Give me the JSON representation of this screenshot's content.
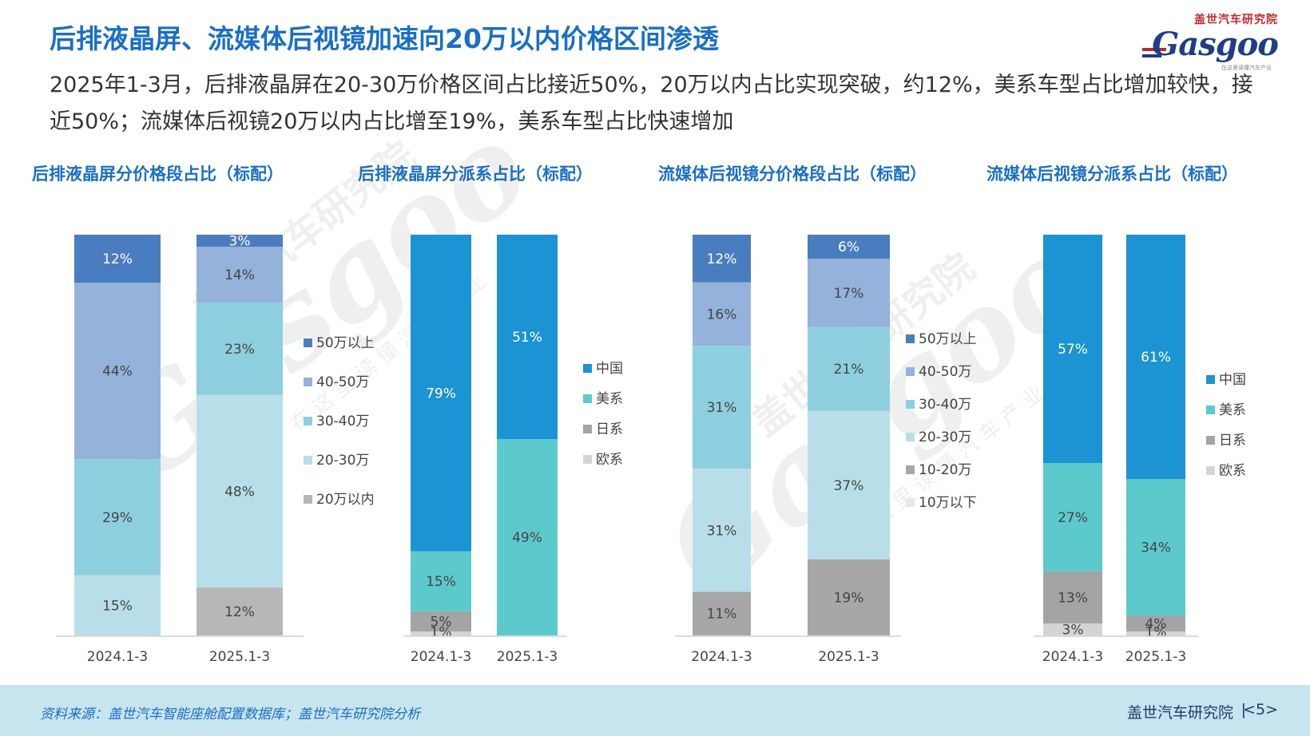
{
  "header": {
    "title": "后排液晶屏、流媒体后视镜加速向20万以内价格区间渗透",
    "subtitle": "2025年1-3月，后排液晶屏在20-30万价格区间占比接近50%，20万以内占比实现突破，约12%，美系车型占比增加较快，接近50%；流媒体后视镜20万以内占比增至19%，美系车型占比快速增加"
  },
  "logo": {
    "cn": "盖世汽车研究院",
    "brand": "Gasgoo",
    "tag": "在这里读懂汽车产业"
  },
  "watermark": {
    "cn": "盖世汽车研究院",
    "brand": "Gasgoo",
    "tag": "在 这 里 读 懂 汽 车 产 业"
  },
  "chart_data": [
    {
      "type": "bar",
      "stacked": true,
      "title": "后排液晶屏分价格段占比（标配）",
      "categories": [
        "2024.1-3",
        "2025.1-3"
      ],
      "series": [
        {
          "name": "20万以内",
          "values": [
            0,
            12
          ],
          "labels": [
            "",
            "12%"
          ],
          "color": "#b7b7b7"
        },
        {
          "name": "20-30万",
          "values": [
            15,
            48
          ],
          "labels": [
            "15%",
            "48%"
          ],
          "color": "#b8dfe9"
        },
        {
          "name": "30-40万",
          "values": [
            29,
            23
          ],
          "labels": [
            "29%",
            "23%"
          ],
          "color": "#8ecfdf"
        },
        {
          "name": "40-50万",
          "values": [
            44,
            14
          ],
          "labels": [
            "44%",
            "14%"
          ],
          "color": "#94b2da"
        },
        {
          "name": "50万以上",
          "values": [
            12,
            3
          ],
          "labels": [
            "12%",
            "3%"
          ],
          "color": "#4a7dbf"
        }
      ]
    },
    {
      "type": "bar",
      "stacked": true,
      "title": "后排液晶屏分派系占比（标配）",
      "categories": [
        "2024.1-3",
        "2025.1-3"
      ],
      "series": [
        {
          "name": "欧系",
          "values": [
            1,
            0
          ],
          "labels": [
            "1%",
            ""
          ],
          "color": "#d4d4d4"
        },
        {
          "name": "日系",
          "values": [
            5,
            0
          ],
          "labels": [
            "5%",
            ""
          ],
          "color": "#a4a4a4"
        },
        {
          "name": "美系",
          "values": [
            15,
            49
          ],
          "labels": [
            "15%",
            "49%"
          ],
          "color": "#5ccacc"
        },
        {
          "name": "中国",
          "values": [
            79,
            51
          ],
          "labels": [
            "79%",
            "51%"
          ],
          "color": "#1c93d2"
        }
      ]
    },
    {
      "type": "bar",
      "stacked": true,
      "title": "流媒体后视镜分价格段占比（标配）",
      "categories": [
        "2024.1-3",
        "2025.1-3"
      ],
      "series": [
        {
          "name": "10万以下",
          "values": [
            0,
            0
          ],
          "labels": [
            "",
            ""
          ],
          "color": "#e8e8e8"
        },
        {
          "name": "10-20万",
          "values": [
            11,
            19
          ],
          "labels": [
            "11%",
            "19%"
          ],
          "color": "#a7a7a7"
        },
        {
          "name": "20-30万",
          "values": [
            31,
            37
          ],
          "labels": [
            "31%",
            "37%"
          ],
          "color": "#b8dfe9"
        },
        {
          "name": "30-40万",
          "values": [
            31,
            21
          ],
          "labels": [
            "31%",
            "21%"
          ],
          "color": "#8ecfdf"
        },
        {
          "name": "40-50万",
          "values": [
            16,
            17
          ],
          "labels": [
            "16%",
            "17%"
          ],
          "color": "#94b2da"
        },
        {
          "name": "50万以上",
          "values": [
            12,
            6
          ],
          "labels": [
            "12%",
            "6%"
          ],
          "color": "#4a7dbf"
        }
      ]
    },
    {
      "type": "bar",
      "stacked": true,
      "title": "流媒体后视镜分派系占比（标配）",
      "categories": [
        "2024.1-3",
        "2025.1-3"
      ],
      "series": [
        {
          "name": "欧系",
          "values": [
            3,
            1
          ],
          "labels": [
            "3%",
            "1%"
          ],
          "color": "#d4d4d4"
        },
        {
          "name": "日系",
          "values": [
            13,
            4
          ],
          "labels": [
            "13%",
            "4%"
          ],
          "color": "#a4a4a4"
        },
        {
          "name": "美系",
          "values": [
            27,
            34
          ],
          "labels": [
            "27%",
            "34%"
          ],
          "color": "#5ccacc"
        },
        {
          "name": "中国",
          "values": [
            57,
            61
          ],
          "labels": [
            "57%",
            "61%"
          ],
          "color": "#1c93d2"
        }
      ]
    }
  ],
  "footer": {
    "source": "资料来源：盖世汽车智能座舱配置数据库；盖世汽车研究院分析",
    "org": "盖世汽车研究院",
    "separator": "|",
    "page": "<5>"
  }
}
